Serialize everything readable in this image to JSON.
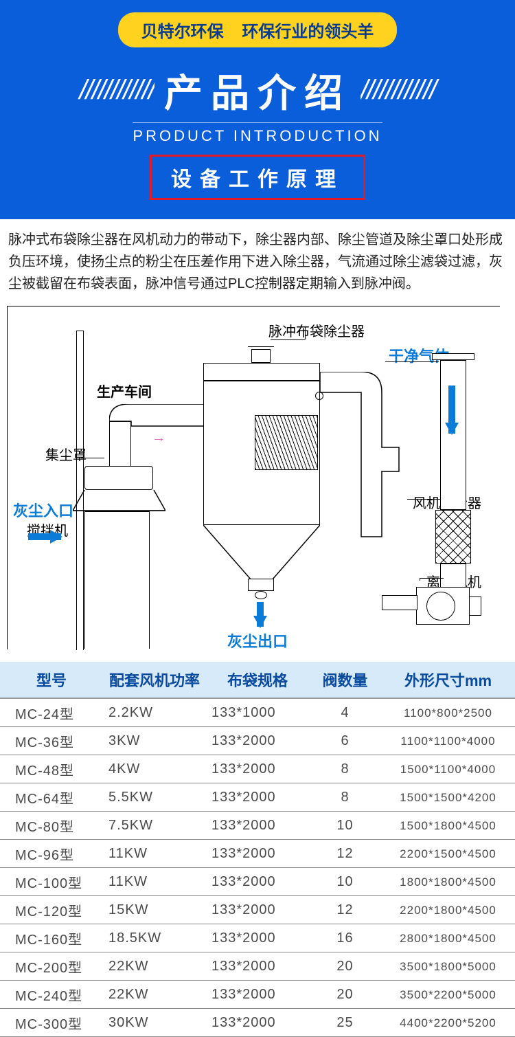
{
  "header": {
    "badge_left": "贝特尔环保",
    "badge_right": "环保行业的领头羊",
    "title": "产品介绍",
    "subtitle_en": "PRODUCT INTRODUCTION",
    "red_box": "设备工作原理",
    "colors": {
      "bg": "#0a5ed9",
      "badge_bg": "#ffd21f",
      "badge_text": "#0a3b8c",
      "red_border": "#e11b2a"
    }
  },
  "description": "脉冲式布袋除尘器在风机动力的带动下，除尘器内部、除尘管道及除尘罩口处形成负压环境，使扬尘点的粉尘在压差作用下进入除尘器，气流通过除尘滤袋过滤，灰尘被截留在布袋表面，脉冲信号通过PLC控制器定期输入到脉冲阀。",
  "diagram": {
    "labels": {
      "top_device": "脉冲布袋除尘器",
      "clean_gas": "干净气体",
      "workshop": "生产车间",
      "hood": "集尘罩",
      "dust_in": "灰尘入口",
      "mixer": "搅拌机",
      "silencer": "风机消音器",
      "fan": "离心风机",
      "dust_out": "灰尘出口"
    },
    "colors": {
      "blue": "#0a7bd6",
      "line": "#000000",
      "pink": "#e06ab0"
    }
  },
  "table": {
    "columns": [
      "型号",
      "配套风机功率",
      "布袋规格",
      "阀数量",
      "外形尺寸mm"
    ],
    "col_widths": [
      "20%",
      "20%",
      "20%",
      "14%",
      "26%"
    ],
    "header_bg": "#d6eaf9",
    "header_color": "#0a4a9e",
    "rows": [
      [
        "MC-24型",
        "2.2KW",
        "133*1000",
        "4",
        "1100*800*2500"
      ],
      [
        "MC-36型",
        "3KW",
        "133*2000",
        "6",
        "1100*1100*4000"
      ],
      [
        "MC-48型",
        "4KW",
        "133*2000",
        "8",
        "1500*1100*4000"
      ],
      [
        "MC-64型",
        "5.5KW",
        "133*2000",
        "8",
        "1500*1500*4200"
      ],
      [
        "MC-80型",
        "7.5KW",
        "133*2000",
        "10",
        "1500*1800*4500"
      ],
      [
        "MC-96型",
        "11KW",
        "133*2000",
        "12",
        "2200*1500*4500"
      ],
      [
        "MC-100型",
        "11KW",
        "133*2000",
        "10",
        "1800*1800*4500"
      ],
      [
        "MC-120型",
        "15KW",
        "133*2000",
        "12",
        "2200*1800*4500"
      ],
      [
        "MC-160型",
        "18.5KW",
        "133*2000",
        "16",
        "2800*1800*4500"
      ],
      [
        "MC-200型",
        "22KW",
        "133*2000",
        "20",
        "3500*1800*5000"
      ],
      [
        "MC-240型",
        "22KW",
        "133*2000",
        "20",
        "3500*2200*5000"
      ],
      [
        "MC-300型",
        "30KW",
        "133*2000",
        "25",
        "4400*2200*5200"
      ]
    ]
  }
}
